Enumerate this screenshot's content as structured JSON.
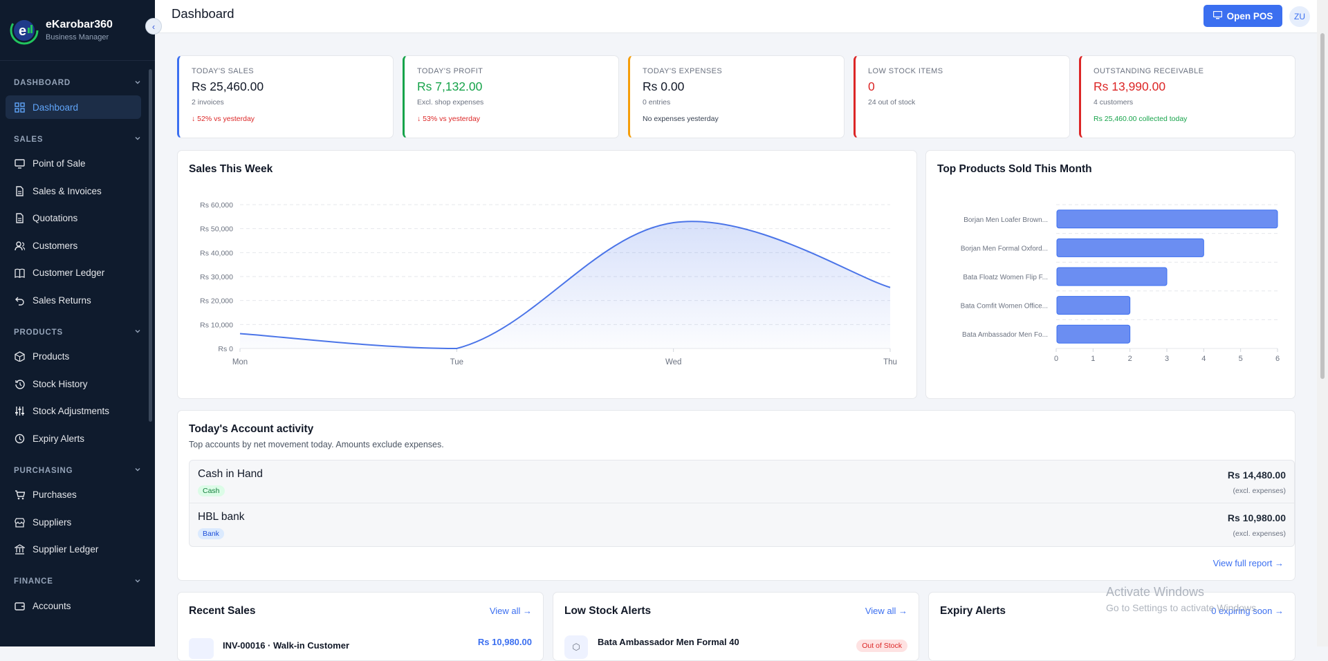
{
  "brand": {
    "name": "eKarobar360",
    "subtitle": "Business Manager"
  },
  "sidebar": {
    "sections": [
      {
        "label": "DASHBOARD",
        "items": [
          {
            "label": "Dashboard",
            "icon": "dashboard-icon",
            "active": true
          }
        ]
      },
      {
        "label": "SALES",
        "items": [
          {
            "label": "Point of Sale",
            "icon": "monitor-icon"
          },
          {
            "label": "Sales & Invoices",
            "icon": "document-icon"
          },
          {
            "label": "Quotations",
            "icon": "document-icon"
          },
          {
            "label": "Customers",
            "icon": "users-icon"
          },
          {
            "label": "Customer Ledger",
            "icon": "book-icon"
          },
          {
            "label": "Sales Returns",
            "icon": "return-icon"
          }
        ]
      },
      {
        "label": "PRODUCTS",
        "items": [
          {
            "label": "Products",
            "icon": "box-icon"
          },
          {
            "label": "Stock History",
            "icon": "history-icon"
          },
          {
            "label": "Stock Adjustments",
            "icon": "sliders-icon"
          },
          {
            "label": "Expiry Alerts",
            "icon": "clock-icon"
          }
        ]
      },
      {
        "label": "PURCHASING",
        "items": [
          {
            "label": "Purchases",
            "icon": "cart-icon"
          },
          {
            "label": "Suppliers",
            "icon": "store-icon"
          },
          {
            "label": "Supplier Ledger",
            "icon": "bank-icon"
          }
        ]
      },
      {
        "label": "FINANCE",
        "items": [
          {
            "label": "Accounts",
            "icon": "wallet-icon"
          }
        ]
      }
    ]
  },
  "header": {
    "title": "Dashboard",
    "open_pos_label": "Open POS",
    "avatar_initials": "ZU"
  },
  "kpis": [
    {
      "label": "TODAY'S SALES",
      "value": "Rs 25,460.00",
      "sub": "2 invoices",
      "trend": "↓ 52% vs yesterday",
      "accent": "#3b6ff0",
      "value_color": "#111827",
      "trend_color": "#dc2626"
    },
    {
      "label": "TODAY'S PROFIT",
      "value": "Rs 7,132.00",
      "sub": "Excl. shop expenses",
      "trend": "↓ 53% vs yesterday",
      "accent": "#16a34a",
      "value_color": "#16a34a",
      "trend_color": "#dc2626"
    },
    {
      "label": "TODAY'S EXPENSES",
      "value": "Rs 0.00",
      "sub": "0 entries",
      "trend": "No expenses yesterday",
      "accent": "#f59e0b",
      "value_color": "#111827",
      "trend_color": "#374151"
    },
    {
      "label": "LOW STOCK ITEMS",
      "value": "0",
      "sub": "24 out of stock",
      "trend": "",
      "accent": "#dc2626",
      "value_color": "#dc2626",
      "trend_color": "#374151"
    },
    {
      "label": "OUTSTANDING RECEIVABLE",
      "value": "Rs 13,990.00",
      "sub": "4 customers",
      "trend": "Rs 25,460.00 collected today",
      "accent": "#dc2626",
      "value_color": "#dc2626",
      "trend_color": "#16a34a"
    }
  ],
  "sales_week": {
    "title": "Sales This Week"
  },
  "top_products": {
    "title": "Top Products Sold This Month"
  },
  "chart_data": [
    {
      "type": "area",
      "title": "Sales This Week",
      "categories": [
        "Mon",
        "Tue",
        "Wed",
        "Thu"
      ],
      "series": [
        {
          "values": [
            6200,
            0,
            52500,
            25460
          ]
        }
      ],
      "ylim": [
        0,
        60000
      ],
      "yticks": [
        "Rs 0",
        "Rs 10,000",
        "Rs 20,000",
        "Rs 30,000",
        "Rs 40,000",
        "Rs 50,000",
        "Rs 60,000"
      ],
      "grid": true,
      "color": "#4a74e8"
    },
    {
      "type": "bar",
      "orientation": "horizontal",
      "title": "Top Products Sold This Month",
      "categories": [
        "Borjan Men Loafer Brown...",
        "Borjan Men Formal Oxford...",
        "Bata Floatz Women Flip F...",
        "Bata Comfit Women Office...",
        "Bata Ambassador Men Fo..."
      ],
      "values": [
        6,
        4,
        3,
        2,
        2
      ],
      "xlim": [
        0,
        6
      ],
      "xticks": [
        "0",
        "1",
        "2",
        "3",
        "4",
        "5",
        "6"
      ],
      "grid": true,
      "color": "#6b8ef2"
    }
  ],
  "activity": {
    "title": "Today's Account activity",
    "subtitle": "Top accounts by net movement today. Amounts exclude expenses.",
    "rows": [
      {
        "name": "Cash in Hand",
        "tag": "Cash",
        "amount": "Rs 14,480.00",
        "note": "(excl. expenses)"
      },
      {
        "name": "HBL bank",
        "tag": "Bank",
        "amount": "Rs 10,980.00",
        "note": "(excl. expenses)"
      }
    ],
    "view_full": "View full report →"
  },
  "recent_sales": {
    "title": "Recent Sales",
    "view_all": "View all →",
    "first_row": "INV-00016 · Walk-in Customer",
    "first_amount": "Rs 10,980.00"
  },
  "low_stock": {
    "title": "Low Stock Alerts",
    "view_all": "View all →",
    "first_row": "Bata Ambassador Men Formal 40",
    "first_badge": "Out of Stock"
  },
  "expiry": {
    "title": "Expiry Alerts",
    "link": "0 expiring soon →"
  },
  "watermark": {
    "line1": "Activate Windows",
    "line2": "Go to Settings to activate Windows."
  }
}
